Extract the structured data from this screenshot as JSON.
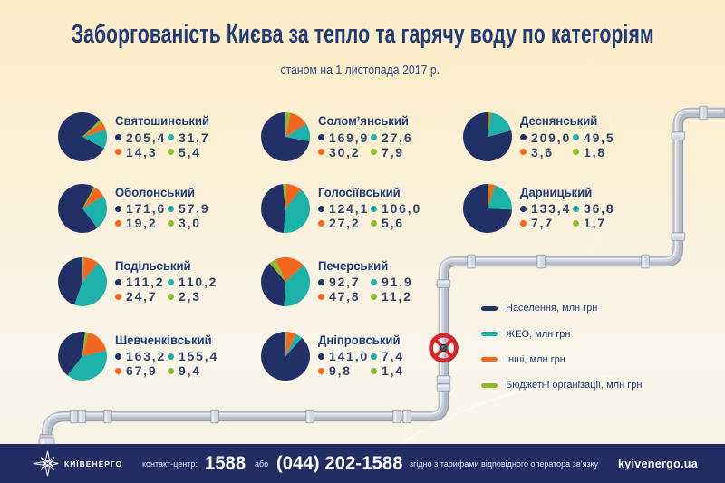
{
  "header": {
    "title": "Заборгованість Києва за тепло та гарячу воду по категоріям",
    "subtitle": "станом на 1 листопада 2017 р."
  },
  "chart_data": {
    "type": "pie",
    "unit": "млн грн",
    "categories": [
      "Населення",
      "ЖЕО",
      "Інші",
      "Бюджетні організації"
    ],
    "colors": [
      "#213168",
      "#1cb2a9",
      "#f4661f",
      "#8cba2b"
    ],
    "districts": [
      {
        "name": "Святошинський",
        "values": [
          205.4,
          31.7,
          14.3,
          5.4
        ],
        "labels": [
          "205,4",
          "31,7",
          "14,3",
          "5,4"
        ],
        "start_angle": 44,
        "col": 0,
        "row": 0
      },
      {
        "name": "Солом’янський",
        "values": [
          169.9,
          27.6,
          30.2,
          7.9
        ],
        "labels": [
          "169,9",
          "27,6",
          "30,2",
          "7,9"
        ],
        "start_angle": 90,
        "col": 1,
        "row": 0
      },
      {
        "name": "Деснянський",
        "values": [
          209.0,
          49.5,
          3.6,
          1.8
        ],
        "labels": [
          "209,0",
          "49,5",
          "3,6",
          "1,8"
        ],
        "start_angle": 90,
        "col": 2,
        "row": 0
      },
      {
        "name": "Оболонський",
        "values": [
          171.6,
          57.9,
          19.2,
          3.0
        ],
        "labels": [
          "171,6",
          "57,9",
          "19,2",
          "3,0"
        ],
        "start_angle": 62,
        "col": 0,
        "row": 1
      },
      {
        "name": "Голосіївський",
        "values": [
          124.1,
          106.0,
          27.2,
          5.6
        ],
        "labels": [
          "124,1",
          "106,0",
          "27,2",
          "5,6"
        ],
        "start_angle": 96,
        "col": 1,
        "row": 1
      },
      {
        "name": "Дарницький",
        "values": [
          133.4,
          36.8,
          7.7,
          1.7
        ],
        "labels": [
          "133,4",
          "36,8",
          "7,7",
          "1,7"
        ],
        "start_angle": 90,
        "col": 2,
        "row": 1
      },
      {
        "name": "Подільський",
        "values": [
          111.2,
          110.2,
          24.7,
          2.3
        ],
        "labels": [
          "111,2",
          "110,2",
          "24,7",
          "2,3"
        ],
        "start_angle": 90,
        "col": 0,
        "row": 2
      },
      {
        "name": "Печерський",
        "values": [
          92.7,
          91.9,
          47.8,
          11.2
        ],
        "labels": [
          "92,7",
          "91,9",
          "47,8",
          "11,2"
        ],
        "start_angle": 130,
        "col": 1,
        "row": 2
      },
      {
        "name": "Шевченківський",
        "values": [
          163.2,
          155.4,
          67.9,
          9.4
        ],
        "labels": [
          "163,2",
          "155,4",
          "67,9",
          "9,4"
        ],
        "start_angle": 84,
        "col": 0,
        "row": 3
      },
      {
        "name": "Дніпровський",
        "values": [
          141.0,
          7.4,
          9.8,
          1.4
        ],
        "labels": [
          "141,0",
          "7,4",
          "9,8",
          "1,4"
        ],
        "start_angle": 90,
        "col": 1,
        "row": 3
      }
    ],
    "legend_position": "middle-right"
  },
  "legend": {
    "items": [
      {
        "label": "Населення, млн грн",
        "color": "#213168"
      },
      {
        "label": "ЖЕО, млн грн",
        "color": "#1cb2a9"
      },
      {
        "label": "Інші, млн грн",
        "color": "#f4661f"
      },
      {
        "label": "Бюджетні організації, млн грн",
        "color": "#8cba2b"
      }
    ]
  },
  "footer": {
    "brand": "КИЇВЕНЕРГО",
    "contact_label": "контакт-центр:",
    "phone_short": "1588",
    "or_label": "або",
    "phone_full": "(044) 202-1588",
    "tariff_note": "згідно з тарифами відповідного оператора зв’язку",
    "website": "kyivenergo.ua"
  }
}
